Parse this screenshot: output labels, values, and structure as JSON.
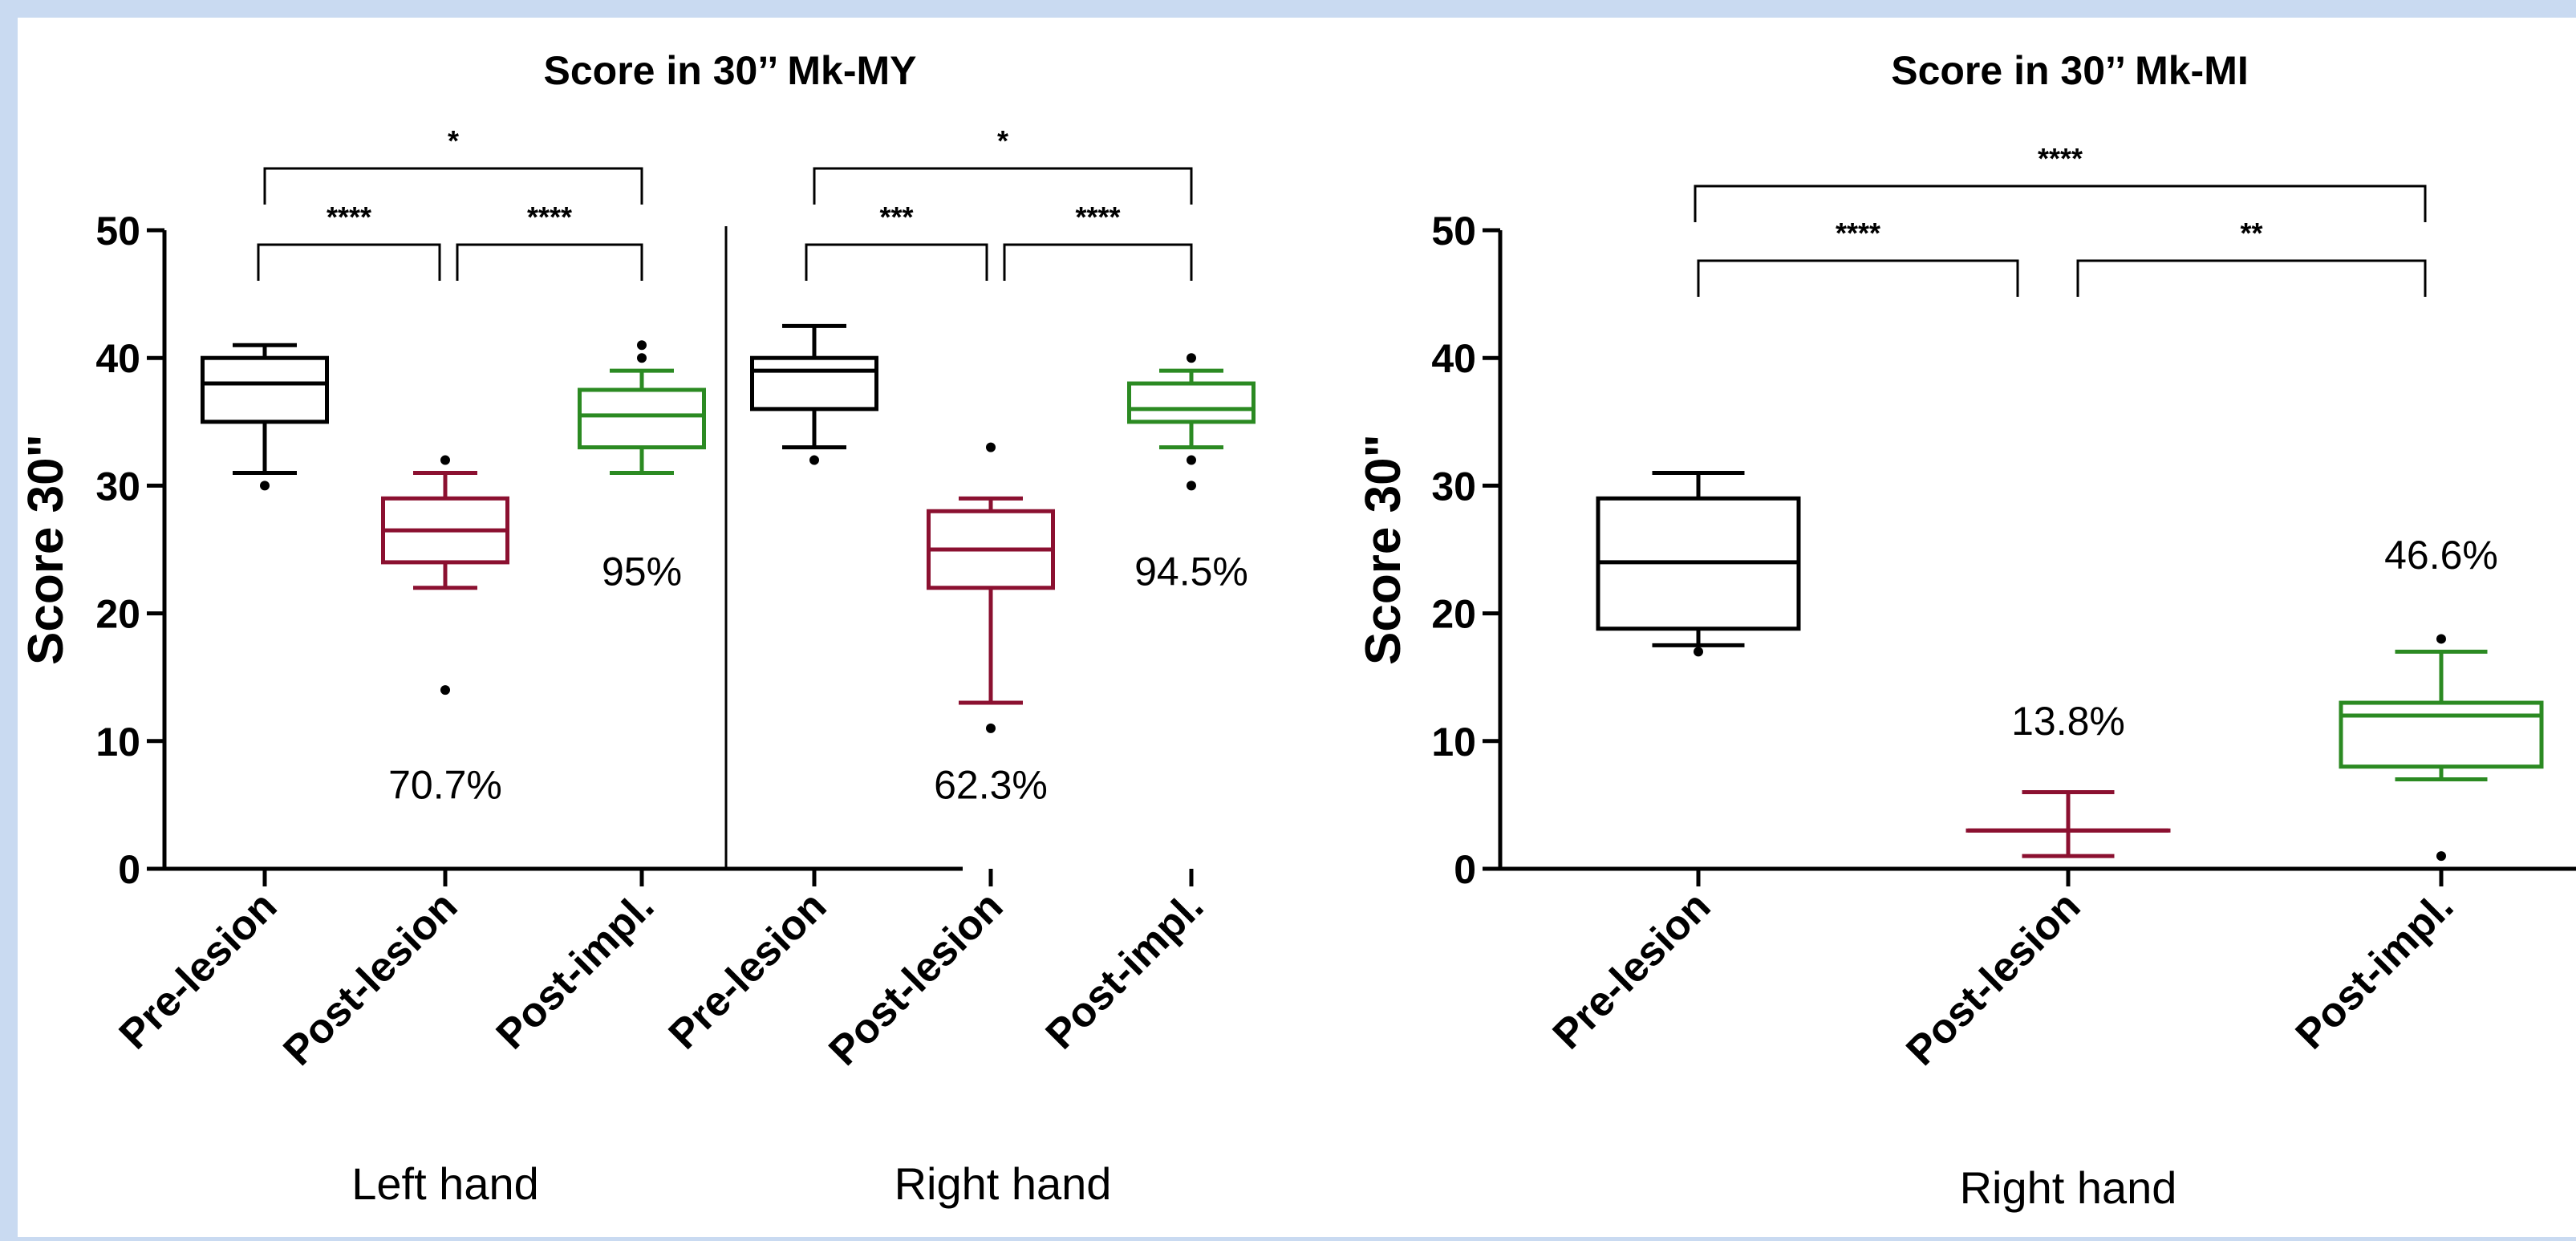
{
  "colors": {
    "pre": "#000000",
    "post_lesion": "#8b1030",
    "post_impl": "#2b8a22"
  },
  "chart_data": [
    {
      "type": "box",
      "title": "Score in 30’’ Mk-MY",
      "ylabel": "Score 30\"",
      "ylim": [
        0,
        50
      ],
      "yticks": [
        "0",
        "10",
        "20",
        "30",
        "40",
        "50"
      ],
      "panels": [
        {
          "group_label": "Left hand",
          "categories": [
            "Pre-lesion",
            "Post-lesion",
            "Post-impl."
          ],
          "boxes": [
            {
              "category": "Pre-lesion",
              "color": "pre",
              "whisker_low": 31,
              "q1": 35,
              "median": 38,
              "q3": 40,
              "whisker_high": 41,
              "outliers": [
                30
              ]
            },
            {
              "category": "Post-lesion",
              "color": "post_lesion",
              "whisker_low": 22,
              "q1": 24,
              "median": 26.5,
              "q3": 29,
              "whisker_high": 31,
              "outliers": [
                32,
                14
              ]
            },
            {
              "category": "Post-impl.",
              "color": "post_impl",
              "whisker_low": 31,
              "q1": 33,
              "median": 35.5,
              "q3": 37.5,
              "whisker_high": 39,
              "outliers": [
                40,
                41
              ]
            }
          ],
          "annotations": [
            {
              "text": "70.7%",
              "category": "Post-lesion",
              "y": 5.5
            },
            {
              "text": "95%",
              "category": "Post-impl.",
              "y": 22.2
            }
          ],
          "significance": [
            {
              "from": "Pre-lesion",
              "to": "Post-lesion",
              "label": "****"
            },
            {
              "from": "Post-lesion",
              "to": "Post-impl.",
              "label": "****"
            },
            {
              "from": "Pre-lesion",
              "to": "Post-impl.",
              "label": "*"
            }
          ]
        },
        {
          "group_label": "Right hand",
          "categories": [
            "Pre-lesion",
            "Post-lesion",
            "Post-impl."
          ],
          "boxes": [
            {
              "category": "Pre-lesion",
              "color": "pre",
              "whisker_low": 33,
              "q1": 36,
              "median": 39,
              "q3": 40,
              "whisker_high": 42.5,
              "outliers": [
                32
              ]
            },
            {
              "category": "Post-lesion",
              "color": "post_lesion",
              "whisker_low": 13,
              "q1": 22,
              "median": 25,
              "q3": 28,
              "whisker_high": 29,
              "outliers": [
                33,
                11
              ]
            },
            {
              "category": "Post-impl.",
              "color": "post_impl",
              "whisker_low": 33,
              "q1": 35,
              "median": 36,
              "q3": 38,
              "whisker_high": 39,
              "outliers": [
                40,
                32,
                30
              ]
            }
          ],
          "annotations": [
            {
              "text": "62.3%",
              "category": "Post-lesion",
              "y": 5.5
            },
            {
              "text": "94.5%",
              "category": "Post-impl.",
              "y": 22.2
            }
          ],
          "significance": [
            {
              "from": "Pre-lesion",
              "to": "Post-lesion",
              "label": "***"
            },
            {
              "from": "Post-lesion",
              "to": "Post-impl.",
              "label": "****"
            },
            {
              "from": "Pre-lesion",
              "to": "Post-impl.",
              "label": "*"
            }
          ]
        }
      ]
    },
    {
      "type": "box",
      "title": "Score in 30’’ Mk-MI",
      "ylabel": "Score 30\"",
      "ylim": [
        0,
        50
      ],
      "yticks": [
        "0",
        "10",
        "20",
        "30",
        "40",
        "50"
      ],
      "panels": [
        {
          "group_label": "Right hand",
          "categories": [
            "Pre-lesion",
            "Post-lesion",
            "Post-impl."
          ],
          "boxes": [
            {
              "category": "Pre-lesion",
              "color": "pre",
              "whisker_low": 17.5,
              "q1": 18.8,
              "median": 24,
              "q3": 29,
              "whisker_high": 31,
              "outliers": [
                17
              ]
            },
            {
              "category": "Post-lesion",
              "color": "post_lesion",
              "whisker_low": 1,
              "q1": 3,
              "median": 3,
              "q3": 3,
              "whisker_high": 6,
              "outliers": []
            },
            {
              "category": "Post-impl.",
              "color": "post_impl",
              "whisker_low": 7,
              "q1": 8,
              "median": 12,
              "q3": 13,
              "whisker_high": 17,
              "outliers": [
                18,
                1
              ]
            }
          ],
          "annotations": [
            {
              "text": "13.8%",
              "category": "Post-lesion",
              "y": 10.5
            },
            {
              "text": "46.6%",
              "category": "Post-impl.",
              "y": 23.5
            }
          ],
          "significance": [
            {
              "from": "Pre-lesion",
              "to": "Post-lesion",
              "label": "****"
            },
            {
              "from": "Post-lesion",
              "to": "Post-impl.",
              "label": "**"
            },
            {
              "from": "Pre-lesion",
              "to": "Post-impl.",
              "label": "****"
            }
          ]
        }
      ]
    }
  ]
}
